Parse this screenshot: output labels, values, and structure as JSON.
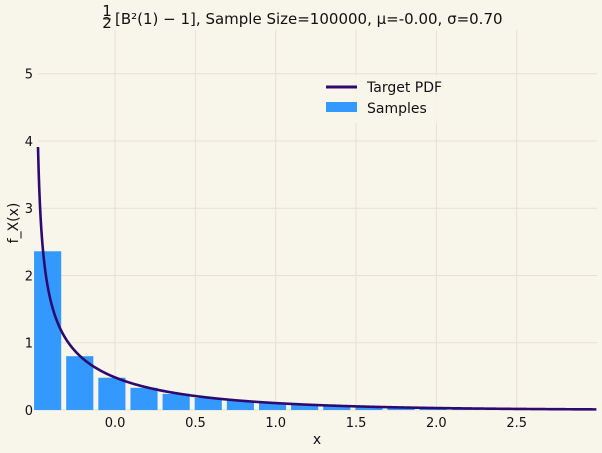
{
  "chart_data": {
    "type": "bar",
    "title_prefix": "[B²(1) − 1], Sample Size=100000, μ=-0.00, σ=0.70",
    "title_frac_num": "1",
    "title_frac_den": "2",
    "xlabel": "x",
    "ylabel": "f_X(x)",
    "xlim": [
      -0.48,
      3.0
    ],
    "ylim": [
      0,
      5.65
    ],
    "x_ticks": [
      0.0,
      0.5,
      1.0,
      1.5,
      2.0,
      2.5
    ],
    "x_tick_labels": [
      "0.0",
      "0.5",
      "1.0",
      "1.5",
      "2.0",
      "2.5"
    ],
    "y_ticks": [
      0,
      1,
      2,
      3,
      4,
      5
    ],
    "y_tick_labels": [
      "0",
      "1",
      "2",
      "3",
      "4",
      "5"
    ],
    "grid": true,
    "legend_position": "top-right",
    "bins": {
      "centers": [
        -0.42,
        -0.22,
        -0.02,
        0.18,
        0.38,
        0.58,
        0.78,
        0.98,
        1.18,
        1.38,
        1.58,
        1.78,
        1.98,
        2.18,
        2.38,
        2.58,
        2.78
      ],
      "width": 0.2,
      "values": [
        2.36,
        0.8,
        0.48,
        0.33,
        0.24,
        0.18,
        0.14,
        0.11,
        0.085,
        0.065,
        0.05,
        0.04,
        0.03,
        0.024,
        0.018,
        0.014,
        0.011
      ]
    },
    "series": [
      {
        "name": "Target PDF",
        "kind": "line",
        "color": "#2e0a6e"
      },
      {
        "name": "Samples",
        "kind": "bar",
        "color": "#3399ff"
      }
    ]
  },
  "colors": {
    "background": "#f8f5ea",
    "grid": "#e6e1d3",
    "bar": "#3399ff",
    "line": "#2e0a6e"
  }
}
